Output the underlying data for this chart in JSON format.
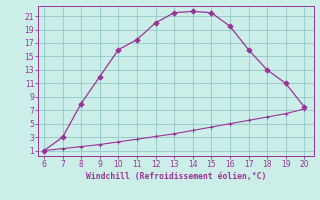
{
  "x_upper": [
    6,
    7,
    8,
    9,
    10,
    11,
    12,
    13,
    14,
    15,
    16,
    17,
    18,
    19,
    20
  ],
  "y_upper": [
    1,
    3,
    8,
    12,
    16,
    17.5,
    20,
    21.5,
    21.7,
    21.5,
    19.5,
    16,
    13,
    11,
    7.5
  ],
  "x_lower": [
    6,
    7,
    8,
    9,
    10,
    11,
    12,
    13,
    14,
    15,
    16,
    17,
    18,
    19,
    20
  ],
  "y_lower": [
    1,
    1.3,
    1.6,
    1.9,
    2.3,
    2.7,
    3.1,
    3.5,
    4.0,
    4.5,
    5.0,
    5.5,
    6.0,
    6.5,
    7.2
  ],
  "line_color": "#993399",
  "bg_color": "#cceee8",
  "grid_color": "#99cccc",
  "xlabel": "Windchill (Refroidissement éolien,°C)",
  "xlabel_color": "#993399",
  "xticks": [
    6,
    7,
    8,
    9,
    10,
    11,
    12,
    13,
    14,
    15,
    16,
    17,
    18,
    19,
    20
  ],
  "yticks": [
    1,
    3,
    5,
    7,
    9,
    11,
    13,
    15,
    17,
    19,
    21
  ],
  "xlim": [
    5.7,
    20.5
  ],
  "ylim": [
    0.2,
    22.5
  ]
}
